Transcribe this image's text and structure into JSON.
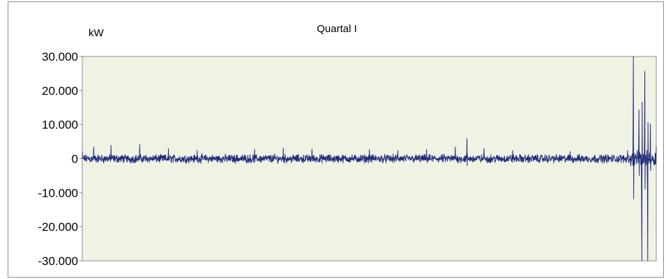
{
  "chart_data": {
    "type": "line",
    "title": "Quartal I",
    "ylabel": "kW",
    "xlabel": "",
    "ylim": [
      -30000,
      30000
    ],
    "yticks": [
      30000,
      20000,
      10000,
      0,
      -10000,
      -20000,
      -30000
    ],
    "ytick_labels": [
      "30.000",
      "20.000",
      "10.000",
      "0",
      "-10.000",
      "-20.000",
      "-30.000"
    ],
    "grid": false,
    "plot_background": "#f0f3e4",
    "series": [
      {
        "color": "#1f2b7a",
        "samples": 2160,
        "baseline_amplitude": 1000,
        "x": [
          0,
          0.02,
          0.05,
          0.1,
          0.15,
          0.2,
          0.3,
          0.35,
          0.4,
          0.5,
          0.55,
          0.6,
          0.65,
          0.67,
          0.7,
          0.75,
          0.85,
          0.95,
          0.96,
          0.97,
          0.975,
          0.98,
          0.985,
          0.99,
          1.0
        ],
        "y": [
          2000,
          3500,
          4000,
          4200,
          3000,
          2500,
          2800,
          3200,
          2900,
          2700,
          2500,
          2800,
          3500,
          6000,
          3000,
          2500,
          2200,
          2500,
          18800,
          8000,
          -26500,
          14300,
          -17000,
          5700,
          2000
        ]
      }
    ]
  }
}
